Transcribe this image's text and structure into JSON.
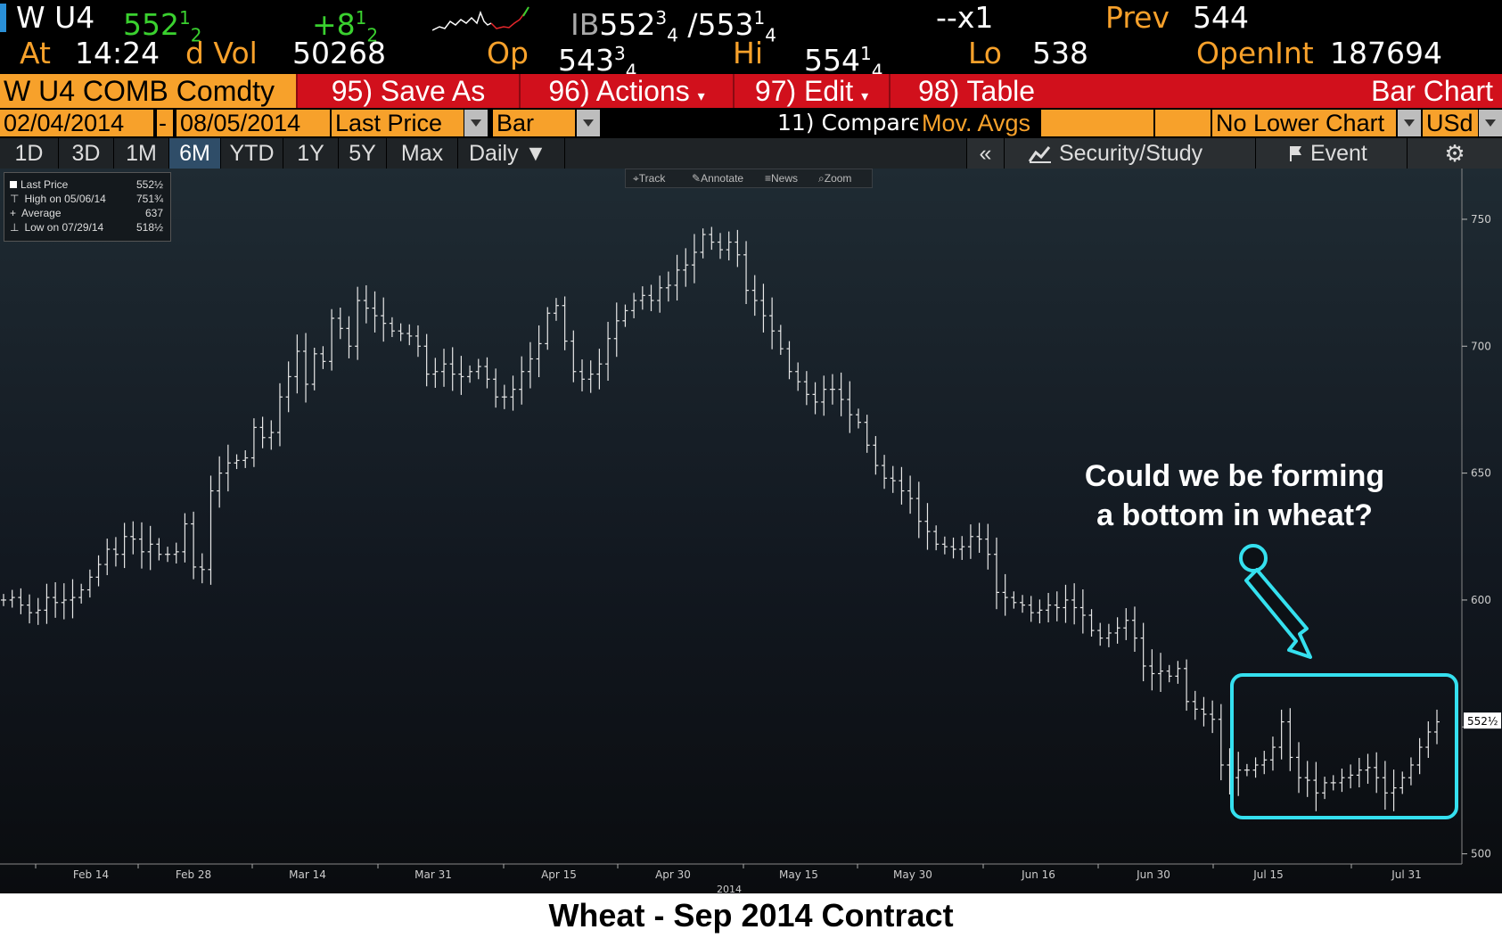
{
  "header": {
    "ticker": "W U4",
    "last": "552",
    "last_frac": "1",
    "last_den": "2",
    "change": "+8",
    "change_frac": "1",
    "change_den": "2",
    "bid_label": "IB",
    "bid": "552",
    "bid_frac": "3",
    "bid_den": "4",
    "ask": "/553",
    "ask_frac": "1",
    "ask_den": "4",
    "size": "--x1",
    "prev_label": "Prev",
    "prev": "544",
    "time_label": "At",
    "time": "14:24",
    "vol_label": "d Vol",
    "vol": "50268",
    "open_label": "Op",
    "open": "543",
    "open_frac": "3",
    "open_den": "4",
    "high_label": "Hi",
    "high": "554",
    "high_frac": "1",
    "high_den": "4",
    "low_label": "Lo",
    "low": "538",
    "oi_label": "OpenInt",
    "oi": "187694"
  },
  "menu": {
    "security": "W U4 COMB Comdty",
    "save_as": "95) Save As",
    "actions": "96) Actions",
    "edit": "97) Edit",
    "table": "98) Table",
    "chart_type": "Bar Chart"
  },
  "controls": {
    "start_date": "02/04/2014",
    "dash": "-",
    "end_date": "08/05/2014",
    "price_field": "Last Price",
    "style": "Bar",
    "compare": "11) Compare",
    "mov_avgs": "Mov. Avgs",
    "lower_chart": "No Lower Chart",
    "currency": "USd"
  },
  "tabs": {
    "items": [
      "1D",
      "3D",
      "1M",
      "6M",
      "YTD",
      "1Y",
      "5Y",
      "Max"
    ],
    "active": "6M",
    "period": "Daily",
    "collapse": "«",
    "security_study": "Security/Study",
    "event": "Event"
  },
  "legend": {
    "rows": [
      {
        "label": "Last Price",
        "value": "552½"
      },
      {
        "label": "High on 05/06/14",
        "value": "751¾"
      },
      {
        "label": "Average",
        "value": "637"
      },
      {
        "label": "Low on 07/29/14",
        "value": "518½"
      }
    ]
  },
  "chart_toolbar": {
    "track": "Track",
    "annotate": "Annotate",
    "news": "News",
    "zoom": "Zoom"
  },
  "annotation": {
    "line1": "Could we be forming",
    "line2": "a bottom in wheat?",
    "color": "#35e0ef"
  },
  "chart_data": {
    "type": "bar",
    "title": "Wheat - Sep 2014 Contract",
    "price_label": "552½",
    "ylim": [
      496,
      770
    ],
    "yticks": [
      500,
      550,
      600,
      650,
      700,
      750
    ],
    "ytick_labels": [
      "500",
      "",
      "600",
      "650",
      "700",
      "750"
    ],
    "year_label": "2014",
    "xtick_labels": [
      "Feb 14",
      "Feb 28",
      "Mar 14",
      "Mar 31",
      "Apr 15",
      "Apr 30",
      "May 15",
      "May 30",
      "Jun 16",
      "Jun 30",
      "Jul 15",
      "Jul 31"
    ],
    "bars_close": [
      600,
      601,
      598,
      595,
      596,
      601,
      599,
      600,
      601,
      604,
      609,
      614,
      620,
      618,
      625,
      624,
      619,
      622,
      618,
      618,
      619,
      630,
      613,
      612,
      643,
      650,
      654,
      655,
      656,
      668,
      664,
      666,
      680,
      688,
      698,
      685,
      697,
      694,
      711,
      707,
      700,
      718,
      715,
      712,
      709,
      706,
      705,
      704,
      700,
      689,
      690,
      693,
      689,
      688,
      690,
      692,
      687,
      680,
      680,
      683,
      690,
      695,
      701,
      713,
      716,
      702,
      690,
      687,
      689,
      693,
      703,
      710,
      714,
      718,
      720,
      718,
      723,
      724,
      730,
      732,
      737,
      744,
      741,
      738,
      741,
      736,
      722,
      718,
      712,
      706,
      699,
      690,
      686,
      681,
      678,
      683,
      683,
      679,
      673,
      670,
      661,
      653,
      648,
      647,
      643,
      640,
      631,
      627,
      622,
      621,
      620,
      621,
      625,
      624,
      618,
      603,
      601,
      599,
      598,
      595,
      596,
      598,
      597,
      600,
      597,
      594,
      588,
      585,
      587,
      589,
      592,
      585,
      574,
      571,
      572,
      570,
      573,
      560,
      557,
      555,
      553,
      535,
      530,
      533,
      533,
      535,
      537,
      542,
      552,
      538,
      530,
      529,
      524,
      528,
      528,
      530,
      531,
      533,
      534,
      530,
      524,
      526,
      530,
      535,
      542,
      548,
      552
    ]
  }
}
